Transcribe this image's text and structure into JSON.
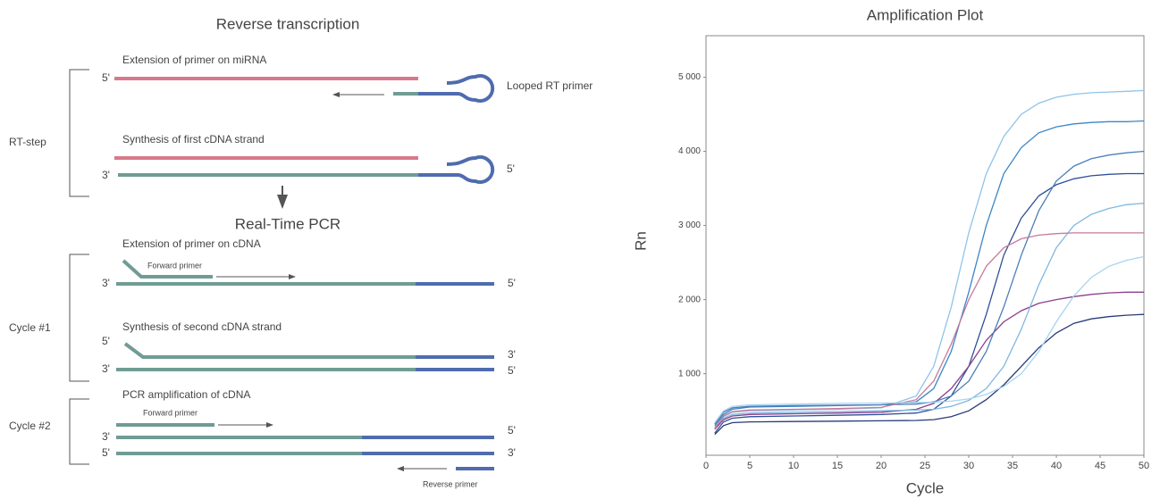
{
  "diagram": {
    "title": "Reverse transcription",
    "rt_step": {
      "label": "RT-step",
      "caption1": "Extension of primer on miRNA",
      "end1": "5'",
      "primer": "Looped RT primer",
      "caption2": "Synthesis of first cDNA strand",
      "end2": "3'",
      "end3": "5'"
    },
    "pcr_title": "Real-Time PCR",
    "cycle1": {
      "label": "Cycle #1",
      "caption1": "Extension of primer on cDNA",
      "primer": "Forward primer",
      "end1": "3'",
      "end2": "5'",
      "caption2": "Synthesis of second cDNA strand",
      "end3": "5'",
      "end4": "3'",
      "end5": "3'",
      "end6": "5'"
    },
    "cycle2": {
      "label": "Cycle #2",
      "caption": "PCR amplification of cDNA",
      "forward_primer": "Forward primer",
      "end1": "3'",
      "end2": "5'",
      "end3": "5'",
      "end4": "3'",
      "reverse_primer": "Reverse primer"
    }
  },
  "chart_data": {
    "type": "line",
    "title": "Amplification Plot",
    "x_label": "Cycle",
    "y_label": "Rn",
    "xlim": [
      0,
      50
    ],
    "ylim": [
      -100,
      5560
    ],
    "xticks": [
      0,
      5,
      10,
      15,
      20,
      25,
      30,
      35,
      40,
      45,
      50
    ],
    "yticks": [
      {
        "value": 1000,
        "label": "1 000"
      },
      {
        "value": 2000,
        "label": "2 000"
      },
      {
        "value": 3000,
        "label": "3 000"
      },
      {
        "value": 4000,
        "label": "4 000"
      },
      {
        "value": 5000,
        "label": "5 000"
      }
    ],
    "x": [
      1,
      2,
      3,
      5,
      10,
      15,
      20,
      24,
      26,
      28,
      30,
      32,
      34,
      36,
      38,
      40,
      42,
      44,
      46,
      48,
      50
    ],
    "series": [
      {
        "color": "#8fc3e8",
        "values": [
          250,
          420,
          480,
          500,
          510,
          520,
          540,
          700,
          1100,
          1900,
          2900,
          3700,
          4200,
          4500,
          4650,
          4730,
          4770,
          4790,
          4800,
          4810,
          4820
        ]
      },
      {
        "color": "#3b86c8",
        "values": [
          300,
          450,
          520,
          550,
          560,
          570,
          580,
          620,
          800,
          1300,
          2100,
          3000,
          3700,
          4050,
          4250,
          4330,
          4370,
          4390,
          4400,
          4400,
          4410
        ]
      },
      {
        "color": "#2f4f9a",
        "values": [
          200,
          350,
          400,
          420,
          430,
          440,
          450,
          470,
          520,
          700,
          1100,
          1800,
          2600,
          3100,
          3400,
          3550,
          3630,
          3670,
          3690,
          3700,
          3700
        ]
      },
      {
        "color": "#8a3f8c",
        "values": [
          250,
          380,
          430,
          450,
          460,
          470,
          480,
          520,
          600,
          800,
          1100,
          1450,
          1700,
          1850,
          1950,
          2000,
          2040,
          2070,
          2090,
          2100,
          2100
        ]
      },
      {
        "color": "#7fb8e0",
        "values": [
          280,
          400,
          450,
          470,
          480,
          490,
          500,
          510,
          520,
          560,
          640,
          800,
          1100,
          1600,
          2200,
          2700,
          3000,
          3150,
          3230,
          3280,
          3300
        ]
      },
      {
        "color": "#4a7fb8",
        "values": [
          320,
          480,
          540,
          560,
          570,
          575,
          580,
          590,
          620,
          700,
          900,
          1300,
          1900,
          2600,
          3200,
          3600,
          3800,
          3900,
          3950,
          3980,
          4000
        ]
      },
      {
        "color": "#283a78",
        "values": [
          180,
          300,
          340,
          350,
          355,
          360,
          365,
          370,
          380,
          420,
          500,
          650,
          850,
          1100,
          1350,
          1550,
          1680,
          1740,
          1770,
          1790,
          1800
        ]
      },
      {
        "color": "#c77a9a",
        "values": [
          260,
          430,
          490,
          510,
          520,
          530,
          545,
          650,
          900,
          1400,
          2000,
          2450,
          2700,
          2820,
          2870,
          2890,
          2900,
          2900,
          2900,
          2900,
          2900
        ]
      },
      {
        "color": "#a7d3ee",
        "values": [
          340,
          500,
          560,
          580,
          590,
          600,
          605,
          610,
          615,
          630,
          660,
          720,
          830,
          1000,
          1300,
          1700,
          2050,
          2300,
          2450,
          2530,
          2580
        ]
      }
    ]
  }
}
